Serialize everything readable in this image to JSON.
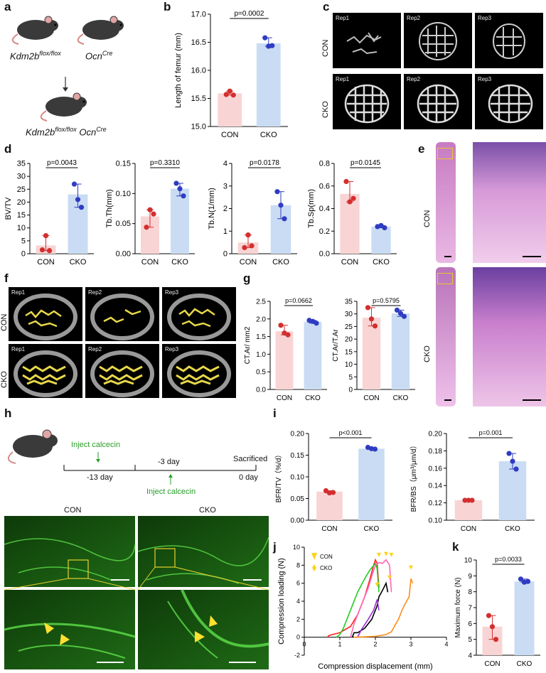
{
  "panel_letters": {
    "a": "a",
    "b": "b",
    "c": "c",
    "d": "d",
    "e": "e",
    "f": "f",
    "g": "g",
    "h": "h",
    "i": "i",
    "j": "j",
    "k": "k"
  },
  "panel_a": {
    "mouse1": "Kdm2b",
    "mouse1_sup": "flox/flox",
    "mouse2": "Ocn",
    "mouse2_sup": "Cre",
    "cross_main": "Kdm2b",
    "cross_sup1": "flox/flox",
    "cross_mid": " Ocn",
    "cross_sup2": "Cre"
  },
  "groups": {
    "con": "CON",
    "cko": "CKO"
  },
  "rep_labels": [
    "Rep1",
    "Rep2",
    "Rep3"
  ],
  "panel_h": {
    "inject1": "Inject calcecin",
    "inject2": "Inject calcecin",
    "sacrificed": "Sacrificed",
    "t1": "-13 day",
    "t2": "-3 day",
    "t3": "0 day"
  },
  "panel_j_legend": {
    "con": "CON",
    "cko": "CKO"
  },
  "colors": {
    "con_fill": "#f9d4d4",
    "cko_fill": "#c9dcf3",
    "con_dot": "#d32f2f",
    "cko_dot": "#2f3cc2",
    "micrograph": "#1a5e12"
  },
  "chart_data": [
    {
      "id": "b",
      "type": "bar",
      "categories": [
        "CON",
        "CKO"
      ],
      "values": [
        15.59,
        16.48
      ],
      "points": [
        [
          15.57,
          15.63,
          15.56
        ],
        [
          16.58,
          16.43,
          16.44
        ]
      ],
      "ylabel": "Length of femur (mm)",
      "ylim": [
        15.0,
        17.0
      ],
      "yticks": [
        "15.0",
        "15.5",
        "16.0",
        "16.5",
        "17.0"
      ],
      "annotation": "p=0.0002"
    },
    {
      "id": "d1",
      "type": "bar",
      "categories": [
        "CON",
        "CKO"
      ],
      "values": [
        3.2,
        23
      ],
      "points": [
        [
          1.5,
          7,
          1.2
        ],
        [
          27,
          21,
          18
        ]
      ],
      "ylabel": "BV/TV",
      "yticks": [
        "0",
        "5",
        "10",
        "15",
        "20",
        "25",
        "30",
        "35"
      ],
      "annotation": "p=0.0043"
    },
    {
      "id": "d2",
      "type": "bar",
      "categories": [
        "CON",
        "CKO"
      ],
      "values": [
        0.062,
        0.108
      ],
      "points": [
        [
          0.044,
          0.073,
          0.066
        ],
        [
          0.117,
          0.108,
          0.096
        ]
      ],
      "ylabel": "Tb.Th(mm)",
      "ylim": [
        0,
        0.15
      ],
      "yticks": [
        "0.00",
        "0.05",
        "0.10",
        "0.15"
      ],
      "annotation": "p=0.3310"
    },
    {
      "id": "d3",
      "type": "bar",
      "categories": [
        "CON",
        "CKO"
      ],
      "values": [
        0.5,
        2.15
      ],
      "points": [
        [
          0.27,
          0.83,
          0.35
        ],
        [
          2.75,
          2.15,
          1.55
        ]
      ],
      "ylabel": "Tb.N(1/mm)",
      "ylim": [
        0,
        4
      ],
      "yticks": [
        "0",
        "1",
        "2",
        "3",
        "4"
      ],
      "annotation": "p=0.0178"
    },
    {
      "id": "d4",
      "type": "bar",
      "categories": [
        "CON",
        "CKO"
      ],
      "values": [
        0.53,
        0.24
      ],
      "points": [
        [
          0.64,
          0.46,
          0.49
        ],
        [
          0.24,
          0.25,
          0.23
        ]
      ],
      "ylabel": "Tb.Sp(mm)",
      "ylim": [
        0,
        0.8
      ],
      "yticks": [
        "0.0",
        "0.2",
        "0.4",
        "0.6",
        "0.8"
      ],
      "annotation": "p=0.0145"
    },
    {
      "id": "g1",
      "type": "bar",
      "categories": [
        "CON",
        "CKO"
      ],
      "values": [
        1.65,
        1.92
      ],
      "points": [
        [
          1.82,
          1.6,
          1.55
        ],
        [
          1.96,
          1.93,
          1.88
        ]
      ],
      "ylabel": "CT.Ar/ mm2",
      "ylim": [
        0,
        2.5
      ],
      "yticks": [
        "0.0",
        "0.5",
        "1.0",
        "1.5",
        "2.0",
        "2.5"
      ],
      "annotation": "p=0.0662"
    },
    {
      "id": "g2",
      "type": "bar",
      "categories": [
        "CON",
        "CKO"
      ],
      "values": [
        28.5,
        30.2
      ],
      "points": [
        [
          32.5,
          28,
          25.2
        ],
        [
          31.5,
          30.2,
          29
        ]
      ],
      "ylabel": "CT.Ar/T.Ar",
      "ylim": [
        0,
        35
      ],
      "yticks": [
        "0",
        "5",
        "10",
        "15",
        "20",
        "25",
        "30",
        "35"
      ],
      "annotation": "p=0.5795"
    },
    {
      "id": "i1",
      "type": "bar",
      "categories": [
        "CON",
        "CKO"
      ],
      "values": [
        0.066,
        0.165
      ],
      "points": [
        [
          0.068,
          0.063,
          0.064
        ],
        [
          0.168,
          0.165,
          0.164
        ]
      ],
      "ylabel": "BFR/TV（%/d）",
      "ylim": [
        0,
        0.2
      ],
      "yticks": [
        "0.00",
        "0.05",
        "0.10",
        "0.15",
        "0.20"
      ],
      "annotation": "p<0.001"
    },
    {
      "id": "i2",
      "type": "bar",
      "categories": [
        "CON",
        "CKO"
      ],
      "values": [
        0.123,
        0.168
      ],
      "points": [
        [
          0.123,
          0.123,
          0.123
        ],
        [
          0.177,
          0.168,
          0.159
        ]
      ],
      "ylabel": "BFR/BS（μm³/μm/d）",
      "ylim": [
        0.1,
        0.2
      ],
      "yticks": [
        "0.10",
        "0.12",
        "0.14",
        "0.16",
        "0.18",
        "0.20"
      ],
      "annotation": "p=0.001"
    },
    {
      "id": "k",
      "type": "bar",
      "categories": [
        "CON",
        "CKO"
      ],
      "values": [
        5.8,
        8.65
      ],
      "points": [
        [
          6.5,
          5.8,
          5.0
        ],
        [
          8.8,
          8.6,
          8.65
        ]
      ],
      "ylabel": "Maximum force (N)",
      "ylim": [
        4,
        10
      ],
      "yticks": [
        "4",
        "5",
        "6",
        "7",
        "8",
        "9",
        "10"
      ],
      "annotation": "p=0.0033"
    },
    {
      "id": "j",
      "type": "line",
      "xlabel": "Compression displacement (mm)",
      "ylabel": "Compression loading (N)",
      "xlim": [
        0,
        4
      ],
      "ylim": [
        -2,
        10
      ],
      "xticks": [
        "0",
        "1",
        "2",
        "3",
        "4"
      ],
      "yticks": [
        "-2",
        "0",
        "2",
        "4",
        "6",
        "8",
        "10"
      ],
      "series": [
        {
          "color": "#ff2020",
          "points": [
            [
              0.65,
              0
            ],
            [
              0.7,
              0.2
            ],
            [
              1.0,
              0.5
            ],
            [
              1.3,
              1.2
            ],
            [
              1.5,
              2.5
            ],
            [
              1.7,
              4.5
            ],
            [
              1.85,
              6.5
            ],
            [
              1.95,
              8.0
            ],
            [
              2.0,
              8.6
            ],
            [
              2.05,
              8.2
            ],
            [
              2.1,
              5.5
            ]
          ]
        },
        {
          "color": "#22cc22",
          "points": [
            [
              0.9,
              0
            ],
            [
              1.0,
              0.3
            ],
            [
              1.1,
              1.0
            ],
            [
              1.3,
              3.0
            ],
            [
              1.5,
              5.0
            ],
            [
              1.7,
              6.5
            ],
            [
              1.85,
              7.5
            ],
            [
              2.0,
              8.2
            ],
            [
              2.05,
              7.6
            ],
            [
              2.1,
              5.0
            ]
          ]
        },
        {
          "color": "#ff66b3",
          "points": [
            [
              1.3,
              0
            ],
            [
              1.4,
              1.5
            ],
            [
              1.6,
              3.5
            ],
            [
              1.8,
              5.5
            ],
            [
              1.9,
              6.8
            ],
            [
              2.0,
              8.0
            ],
            [
              2.1,
              8.3
            ],
            [
              2.2,
              8.2
            ],
            [
              2.3,
              8.6
            ],
            [
              2.4,
              8.0
            ],
            [
              2.45,
              5.0
            ]
          ]
        },
        {
          "color": "#000000",
          "points": [
            [
              1.35,
              0
            ],
            [
              1.4,
              0.5
            ],
            [
              1.5,
              0.5
            ],
            [
              1.7,
              1.0
            ],
            [
              1.9,
              2.0
            ],
            [
              2.05,
              3.5
            ],
            [
              2.1,
              4.5
            ],
            [
              2.2,
              5.2
            ],
            [
              2.3,
              6.0
            ],
            [
              2.35,
              5.0
            ]
          ]
        },
        {
          "color": "#9b30d6",
          "points": [
            [
              1.5,
              0
            ],
            [
              1.6,
              0.8
            ],
            [
              1.8,
              2.0
            ],
            [
              1.95,
              3.0
            ],
            [
              2.0,
              3.6
            ],
            [
              2.05,
              4.2
            ],
            [
              2.1,
              3.0
            ]
          ]
        },
        {
          "color": "#ff8c1a",
          "points": [
            [
              1.4,
              0
            ],
            [
              2.0,
              0.1
            ],
            [
              2.3,
              0.3
            ],
            [
              2.45,
              0.6
            ],
            [
              2.55,
              1.3
            ],
            [
              2.65,
              2.0
            ],
            [
              2.75,
              3.0
            ],
            [
              2.85,
              3.8
            ],
            [
              2.95,
              4.5
            ],
            [
              3.0,
              6.5
            ],
            [
              3.05,
              6.0
            ]
          ]
        }
      ]
    }
  ]
}
